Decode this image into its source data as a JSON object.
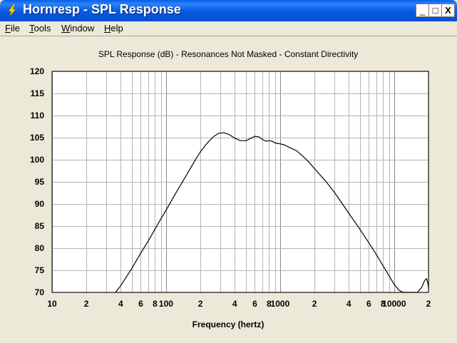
{
  "window": {
    "title": "Hornresp - SPL Response",
    "controls": {
      "minimize": "_",
      "maximize": "□",
      "close": "X"
    }
  },
  "menu": {
    "items": [
      {
        "label": "File",
        "accel": "F",
        "rest": "ile"
      },
      {
        "label": "Tools",
        "accel": "T",
        "rest": "ools"
      },
      {
        "label": "Window",
        "accel": "W",
        "rest": "indow"
      },
      {
        "label": "Help",
        "accel": "H",
        "rest": "elp"
      }
    ]
  },
  "chart_data": {
    "type": "line",
    "title": "SPL Response (dB) - Resonances Not Masked - Constant Directivity",
    "xlabel": "Frequency (hertz)",
    "ylabel": "",
    "xscale": "log",
    "xlim": [
      10,
      20000
    ],
    "ylim": [
      70,
      120
    ],
    "yticks": [
      70,
      75,
      80,
      85,
      90,
      95,
      100,
      105,
      110,
      115,
      120
    ],
    "xtick_labels": [
      {
        "value": 10,
        "label": "10"
      },
      {
        "value": 20,
        "label": "2"
      },
      {
        "value": 40,
        "label": "4"
      },
      {
        "value": 60,
        "label": "6"
      },
      {
        "value": 80,
        "label": "8"
      },
      {
        "value": 100,
        "label": "100"
      },
      {
        "value": 200,
        "label": "2"
      },
      {
        "value": 400,
        "label": "4"
      },
      {
        "value": 600,
        "label": "6"
      },
      {
        "value": 800,
        "label": "8"
      },
      {
        "value": 1000,
        "label": "1000"
      },
      {
        "value": 2000,
        "label": "2"
      },
      {
        "value": 4000,
        "label": "4"
      },
      {
        "value": 6000,
        "label": "6"
      },
      {
        "value": 8000,
        "label": "8"
      },
      {
        "value": 10000,
        "label": "10000"
      },
      {
        "value": 20000,
        "label": "2"
      }
    ],
    "grid": true,
    "line_color": "#000000",
    "series": [
      {
        "values": [
          [
            36,
            70
          ],
          [
            40,
            71.5
          ],
          [
            50,
            75.4
          ],
          [
            60,
            78.9
          ],
          [
            70,
            81.7
          ],
          [
            80,
            84.3
          ],
          [
            90,
            86.6
          ],
          [
            100,
            88.6
          ],
          [
            120,
            92.2
          ],
          [
            150,
            96.4
          ],
          [
            180,
            99.9
          ],
          [
            200,
            101.8
          ],
          [
            230,
            103.8
          ],
          [
            260,
            105.2
          ],
          [
            290,
            106.0
          ],
          [
            320,
            106.1
          ],
          [
            350,
            105.8
          ],
          [
            400,
            104.9
          ],
          [
            450,
            104.3
          ],
          [
            500,
            104.3
          ],
          [
            550,
            104.8
          ],
          [
            600,
            105.3
          ],
          [
            650,
            105.2
          ],
          [
            700,
            104.6
          ],
          [
            750,
            104.2
          ],
          [
            800,
            104.3
          ],
          [
            850,
            104.2
          ],
          [
            900,
            103.8
          ],
          [
            950,
            103.7
          ],
          [
            1000,
            103.6
          ],
          [
            1100,
            103.3
          ],
          [
            1200,
            102.8
          ],
          [
            1400,
            102.0
          ],
          [
            1600,
            100.7
          ],
          [
            1800,
            99.4
          ],
          [
            2000,
            98.0
          ],
          [
            2500,
            95.2
          ],
          [
            3000,
            92.6
          ],
          [
            3500,
            90.1
          ],
          [
            4000,
            87.9
          ],
          [
            5000,
            84.3
          ],
          [
            6000,
            81.2
          ],
          [
            7000,
            78.5
          ],
          [
            8000,
            76.0
          ],
          [
            9000,
            73.8
          ],
          [
            10000,
            71.8
          ],
          [
            11000,
            70.5
          ],
          [
            12000,
            70.0
          ],
          [
            14000,
            69.8
          ],
          [
            16000,
            70.0
          ],
          [
            17500,
            71.2
          ],
          [
            18500,
            72.7
          ],
          [
            19200,
            73.1
          ],
          [
            19800,
            72.0
          ],
          [
            20000,
            71.0
          ]
        ]
      }
    ]
  }
}
